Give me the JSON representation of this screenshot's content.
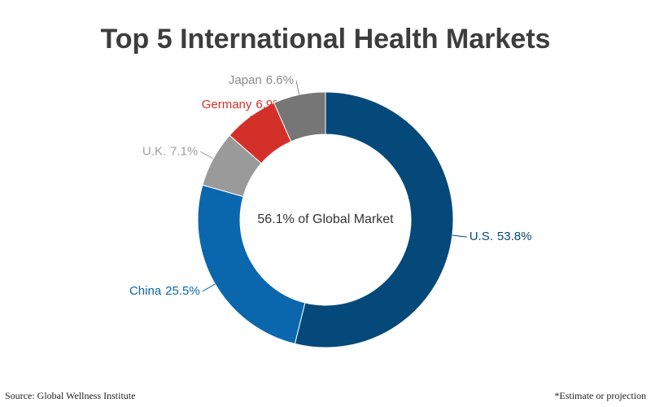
{
  "chart_data": {
    "type": "donut",
    "title": "Top 5 International Health Markets",
    "categories": [
      "U.S.",
      "China",
      "U.K.",
      "Germany",
      "Japan"
    ],
    "values": [
      53.8,
      25.5,
      7.1,
      6.9,
      6.6
    ],
    "value_labels": [
      "53.8%",
      "25.5%",
      "7.1%",
      "6.9%",
      "6.6%"
    ],
    "colors": [
      "#05497a",
      "#0b67ad",
      "#9a9a9a",
      "#d33029",
      "#767676"
    ],
    "label_colors": [
      "#05497a",
      "#0b67ad",
      "#a0a0a0",
      "#d33029",
      "#8a8a8a"
    ],
    "center_label": "56.1% of Global Market",
    "source": "Source: Global Wellness Institute",
    "footnote": "*Estimate or projection"
  }
}
